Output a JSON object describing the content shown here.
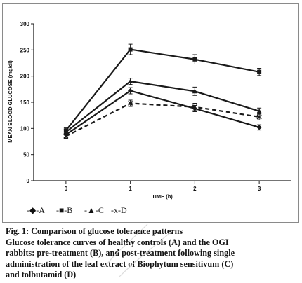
{
  "chart_data": {
    "type": "line",
    "xlabel": "TIME (h)",
    "ylabel": "MEAN BLOOD GLUCOSE (mg/dl)",
    "x": [
      0,
      1,
      2,
      3
    ],
    "ylim": [
      0,
      300
    ],
    "yticks": [
      0,
      50,
      100,
      150,
      200,
      250,
      300
    ],
    "xticks": [
      "0",
      "1",
      "2",
      "3"
    ],
    "grid": false,
    "legend_position": "bottom-left",
    "series": [
      {
        "name": "A",
        "marker": "diamond",
        "line": "solid",
        "values": [
          88,
          172,
          138,
          102
        ],
        "errors": [
          5,
          6,
          6,
          5
        ]
      },
      {
        "name": "B",
        "marker": "square",
        "line": "solid",
        "values": [
          96,
          251,
          232,
          208
        ],
        "errors": [
          5,
          10,
          9,
          7
        ]
      },
      {
        "name": "C",
        "marker": "triangle",
        "line": "solid",
        "values": [
          93,
          190,
          171,
          133
        ],
        "errors": [
          5,
          6,
          8,
          6
        ]
      },
      {
        "name": "D",
        "marker": "x",
        "line": "dashed",
        "values": [
          85,
          148,
          141,
          122
        ],
        "errors": [
          4,
          6,
          7,
          6
        ]
      }
    ],
    "legend_labels": [
      "-◆-A",
      "-■-B",
      "-▲-C",
      "-x-D"
    ]
  },
  "caption": {
    "title": "Fig. 1: Comparison of glucose tolerance patterns",
    "lines": [
      "Glucose tolerance curves of healthy controls (A) and the OGI",
      "rabbits: pre-treatment (B), and post-treatment following single",
      "administration of the leaf extract of Biophytum sensitivum (C)",
      "and tolbutamid (D)"
    ]
  },
  "colors": {
    "series": "#1a1a1a",
    "axis": "#222222",
    "frame": "#8a8a8a",
    "watermark": "#d9d9d9"
  }
}
